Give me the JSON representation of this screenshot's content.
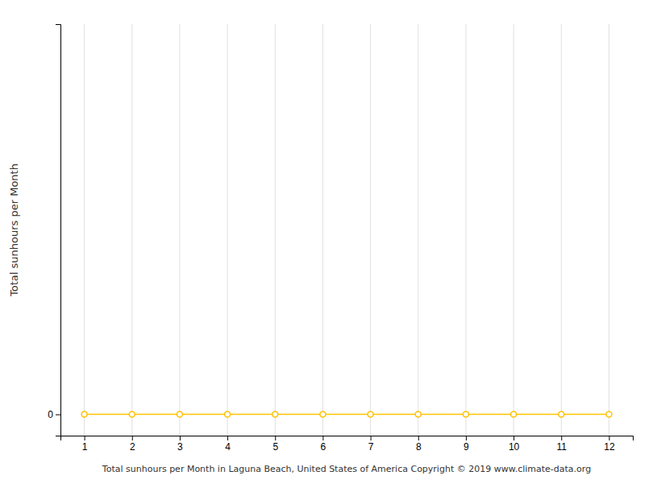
{
  "chart_data": {
    "type": "line",
    "x": [
      1,
      2,
      3,
      4,
      5,
      6,
      7,
      8,
      9,
      10,
      11,
      12
    ],
    "values": [
      0,
      0,
      0,
      0,
      0,
      0,
      0,
      0,
      0,
      0,
      0,
      0
    ],
    "color": "#FFC200",
    "marker": "circle",
    "xlabel": "Total sunhours per Month in Laguna Beach, United States of America Copyright © 2019 www.climate-data.org",
    "ylabel": "Total sunhours per Month",
    "xlim": [
      0.5,
      12.5
    ],
    "ylim": [
      -30,
      550
    ],
    "xticks": [
      1,
      2,
      3,
      4,
      5,
      6,
      7,
      8,
      9,
      10,
      11,
      12
    ],
    "yticks": [
      0
    ],
    "grid": "x"
  }
}
